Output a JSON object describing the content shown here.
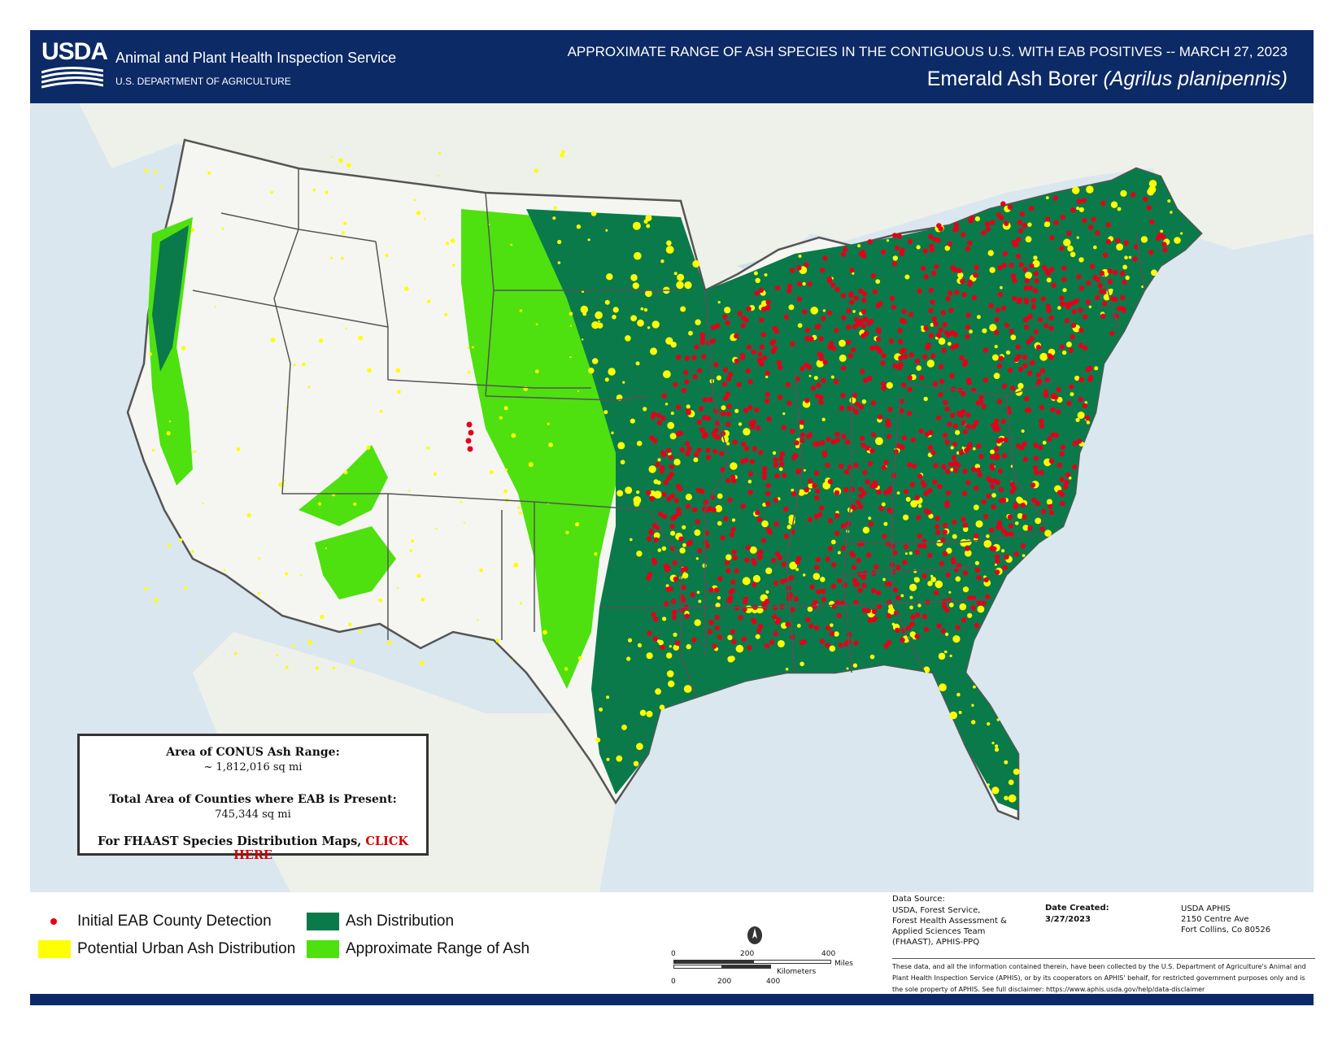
{
  "header": {
    "logo_text": "USDA",
    "agency": "Animal and Plant Health Inspection Service",
    "department": "U.S. DEPARTMENT OF AGRICULTURE",
    "title": "APPROXIMATE RANGE OF ASH SPECIES IN THE CONTIGUOUS U.S. WITH EAB POSITIVES -- MARCH 27, 2023",
    "subtitle_common": "Emerald Ash Borer",
    "subtitle_scientific": "(Agrilus planipennis)"
  },
  "stats": {
    "range_label": "Area of CONUS Ash Range:",
    "range_value": "~ 1,812,016 sq mi",
    "eab_label": "Total Area of Counties where EAB is Present:",
    "eab_value": "745,344 sq mi",
    "link_prefix": "For FHAAST Species Distribution Maps,",
    "link_text": "CLICK HERE"
  },
  "legend": {
    "items": [
      {
        "label": "Initial EAB County Detection",
        "color": "#e3001b",
        "icon": "red-dot"
      },
      {
        "label": "Ash Distribution",
        "color": "#0b7a4a",
        "icon": "swatch"
      },
      {
        "label": "Potential Urban Ash Distribution",
        "color": "#ffff00",
        "icon": "swatch"
      },
      {
        "label": "Approximate Range of Ash",
        "color": "#4fe010",
        "icon": "swatch"
      }
    ]
  },
  "scale": {
    "miles_ticks": [
      "0",
      "200",
      "400"
    ],
    "miles_unit": "Miles",
    "km_ticks": [
      "0",
      "200",
      "400"
    ],
    "km_unit": "Kilometers"
  },
  "footer": {
    "source_label": "Data Source:",
    "source_text": "USDA, Forest Service,\nForest Health Assessment &\nApplied Sciences Team\n(FHAAST), APHIS-PPQ",
    "date_label": "Date Created:",
    "date_value": "3/27/2023",
    "address": "USDA APHIS\n2150 Centre Ave\nFort Collins, Co 80526",
    "disclaimer": "These data, and all the information contained therein, have been collected by the U.S. Department of Agriculture's Animal and Plant Health Inspection Service (APHIS), or by its cooperators on APHIS' behalf, for restricted government purposes only and is the sole property of APHIS. See full disclaimer: https://www.aphis.usda.gov/help/data-disclaimer"
  },
  "colors": {
    "header_bg": "#0b2a66",
    "ash": "#0b7a4a",
    "range": "#4fe010",
    "urban": "#ffff00",
    "detection": "#e3001b",
    "land": "#f6f7f3",
    "water": "#cddfe9"
  }
}
